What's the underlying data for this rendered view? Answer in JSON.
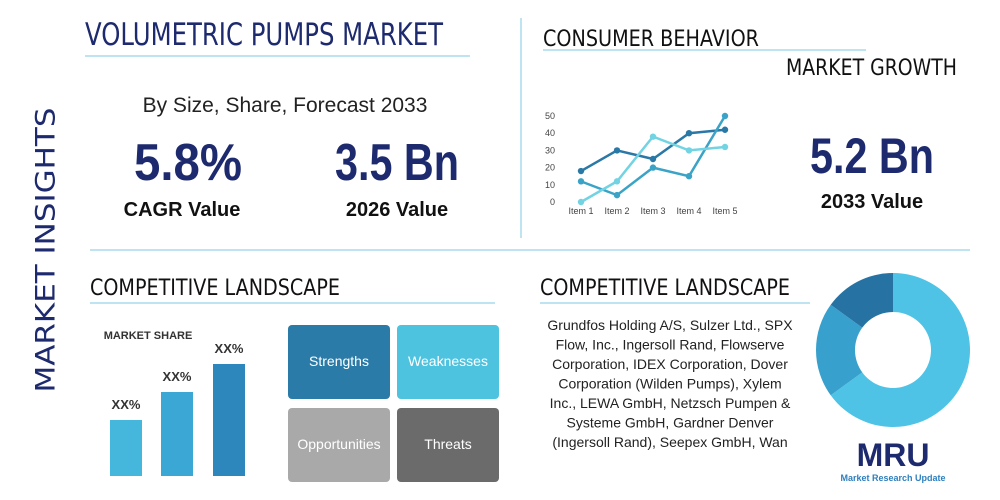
{
  "side_label": "MARKET INSIGHTS",
  "header": {
    "title": "VOLUMETRIC PUMPS MARKET",
    "subtitle": "By Size, Share, Forecast 2033"
  },
  "stats": [
    {
      "value": "5.8%",
      "label": "CAGR Value"
    },
    {
      "value": "3.5 Bn",
      "label": "2026 Value"
    },
    {
      "value": "5.2 Bn",
      "label": "2033 Value"
    }
  ],
  "consumer": {
    "title": "CONSUMER BEHAVIOR",
    "subtitle": "MARKET GROWTH"
  },
  "landscape_left": {
    "title": "COMPETITIVE LANDSCAPE"
  },
  "landscape_right": {
    "title": "COMPETITIVE LANDSCAPE",
    "lines": [
      "Grundfos Holding A/S, Sulzer Ltd., SPX",
      "Flow, Inc., Ingersoll Rand, Flowserve",
      "Corporation, IDEX Corporation, Dover",
      "Corporation (Wilden Pumps), Xylem",
      "Inc., LEWA GmbH, Netzsch Pumpen &",
      "Systeme GmbH, Gardner Denver",
      "(Ingersoll Rand), Seepex GmbH, Wan"
    ]
  },
  "swot": [
    {
      "label": "Strengths",
      "color": "#2b7ba8"
    },
    {
      "label": "Weaknesses",
      "color": "#4ec3e0"
    },
    {
      "label": "Opportunities",
      "color": "#a9a9a9"
    },
    {
      "label": "Threats",
      "color": "#6b6b6b"
    }
  ],
  "logo": {
    "mark": "MRU",
    "name": "Market Research Update"
  },
  "chart_data": [
    {
      "type": "line",
      "categories": [
        "Item 1",
        "Item 2",
        "Item 3",
        "Item 4",
        "Item 5"
      ],
      "series": [
        {
          "color": "#2a78a6",
          "values": [
            18,
            30,
            25,
            40,
            42
          ]
        },
        {
          "color": "#3aa3c6",
          "values": [
            12,
            4,
            20,
            15,
            50
          ]
        },
        {
          "color": "#72d3e3",
          "values": [
            0,
            12,
            38,
            30,
            32
          ]
        }
      ],
      "ylim": [
        0,
        50
      ],
      "yticks": [
        0,
        10,
        20,
        30,
        40,
        50
      ],
      "grid": false
    },
    {
      "type": "bar",
      "title": "MARKET SHARE",
      "categories": [
        null,
        null,
        null
      ],
      "values": [
        20,
        30,
        40
      ],
      "value_labels": [
        "XX%",
        "XX%",
        "XX%"
      ],
      "colors": [
        "#45b6dc",
        "#3aa7d4",
        "#2d86bc"
      ]
    },
    {
      "type": "pie",
      "donut": true,
      "values": [
        65,
        20,
        15
      ],
      "colors": [
        "#4ec3e6",
        "#38a0cc",
        "#2673a3"
      ]
    }
  ]
}
